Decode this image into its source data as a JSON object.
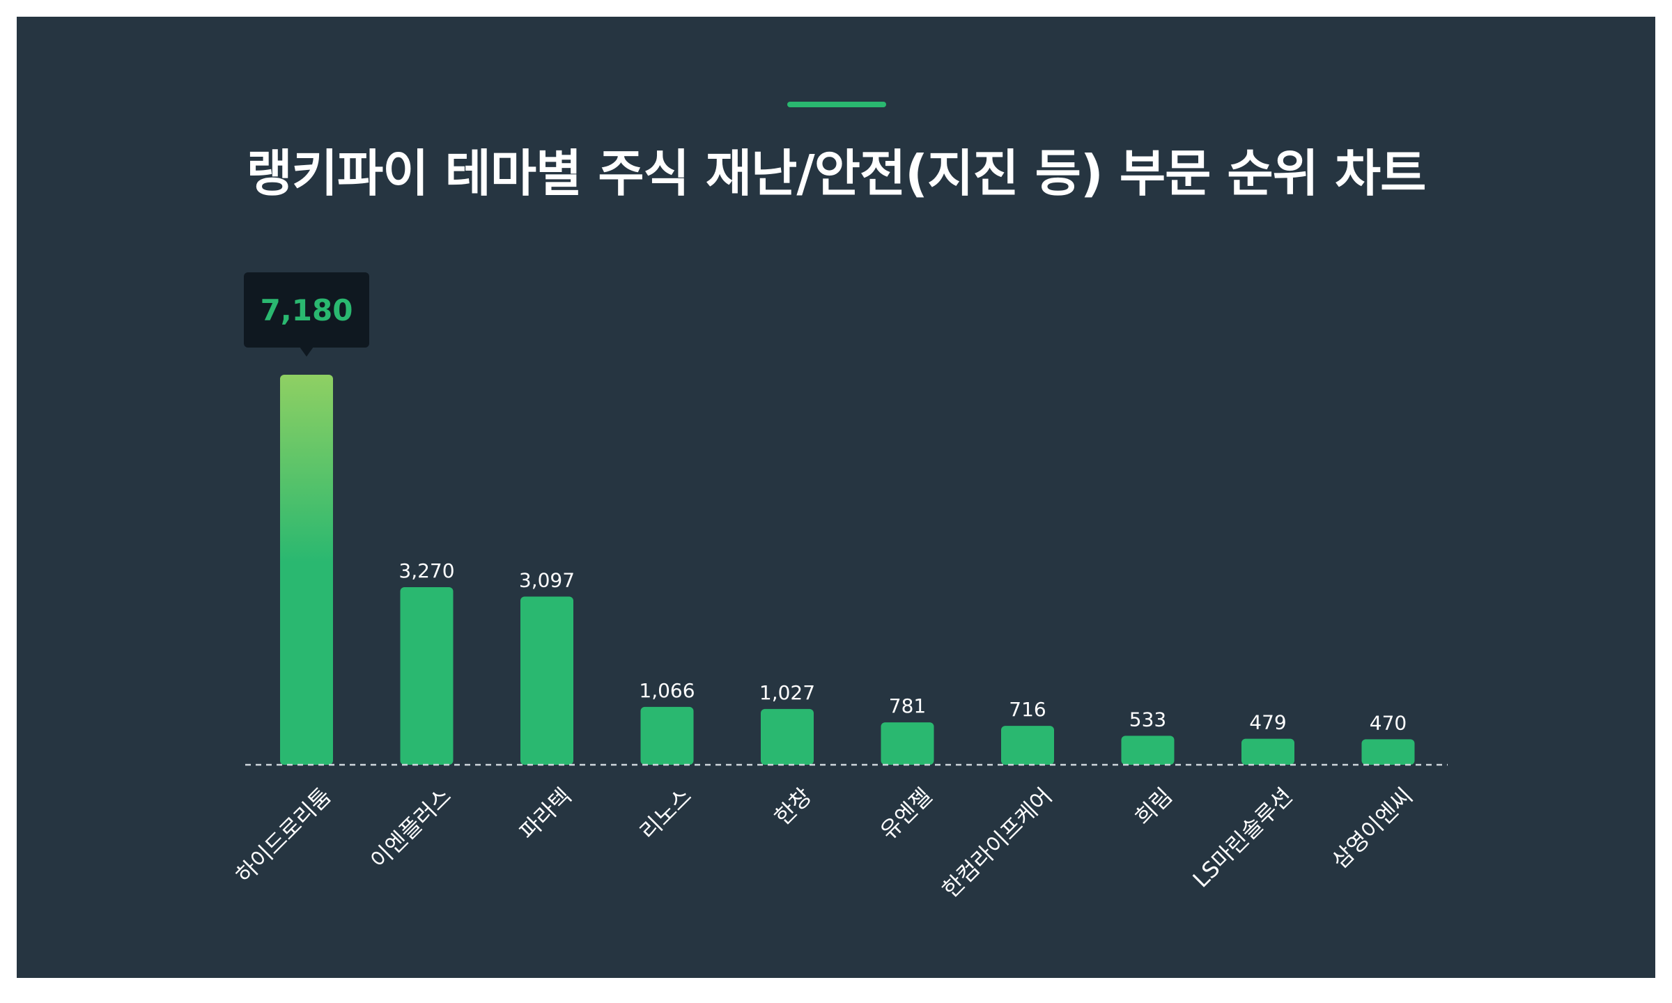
{
  "title": "랭키파이 테마별 주식 재난/안전(지진 등) 부문 순위 차트",
  "colors": {
    "background": "#263541",
    "accent": "#2ab870",
    "bar": "#2ab870",
    "bar_top_gradient": "#8fd063",
    "tooltip_bg": "#0f1820",
    "text": "#ffffff",
    "baseline": "#cfd6dc"
  },
  "chart_data": {
    "type": "bar",
    "title": "랭키파이 테마별 주식 재난/안전(지진 등) 부문 순위 차트",
    "categories": [
      "하이드로리툼",
      "이엔플러스",
      "파라텍",
      "리노스",
      "한창",
      "유엔젤",
      "한컴라이프케어",
      "희림",
      "LS마린솔루션",
      "삼영이엔씨"
    ],
    "values": [
      7180,
      3270,
      3097,
      1066,
      1027,
      781,
      716,
      533,
      479,
      470
    ],
    "value_labels": [
      "7,180",
      "3,270",
      "3,097",
      "1,066",
      "1,027",
      "781",
      "716",
      "533",
      "479",
      "470"
    ],
    "highlight_index": 0,
    "xlabel": "",
    "ylabel": "",
    "ylim": [
      0,
      7180
    ],
    "grid": false,
    "legend": "none"
  }
}
